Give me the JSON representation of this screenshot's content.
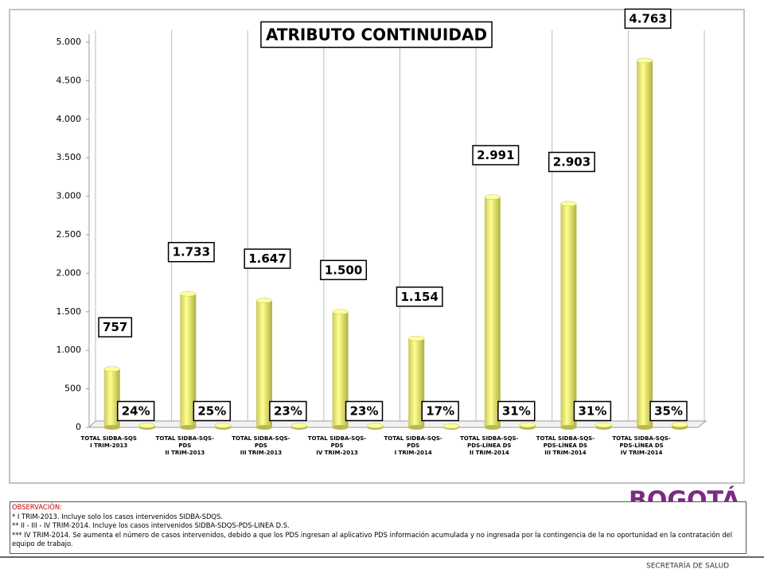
{
  "chart_data": {
    "type": "bar3d",
    "title": "ATRIBUTO CONTINUIDAD",
    "categories": [
      [
        "TOTAL SIDBA-SQS",
        "I TRIM-2013"
      ],
      [
        "TOTAL SIDBA-SQS-",
        "PDS",
        "II TRIM-2013"
      ],
      [
        "TOTAL SIDBA-SQS-",
        "PDS",
        "III TRIM-2013"
      ],
      [
        "TOTAL SIDBA-SQS-",
        "PDS",
        "IV TRIM-2013"
      ],
      [
        "TOTAL SIDBA-SQS-",
        "PDS",
        "I TRIM-2014"
      ],
      [
        "TOTAL SIDBA-SQS-",
        "PDS-LÍNEA DS",
        "II TRIM-2014"
      ],
      [
        "TOTAL SIDBA-SQS-",
        "PDS-LÍNEA DS",
        "III TRIM-2014"
      ],
      [
        "TOTAL SIDBA-SQS-",
        "PDS-LÍNEA DS",
        "IV TRIM-2014"
      ]
    ],
    "series": [
      {
        "color": "#ffff80",
        "values": [
          757,
          1733,
          1647,
          1500,
          1154,
          2991,
          2903,
          4763
        ],
        "value_labels": [
          "757",
          "1.733",
          "1.647",
          "1.500",
          "1.154",
          "2.991",
          "2.903",
          "4.763"
        ]
      },
      {
        "color": "#ffff80",
        "values": [
          24,
          25,
          23,
          23,
          17,
          31,
          31,
          35
        ],
        "value_labels": [
          "24%",
          "25%",
          "23%",
          "23%",
          "17%",
          "31%",
          "31%",
          "35%"
        ]
      }
    ],
    "ylim": [
      0,
      5000
    ],
    "yticks": [
      0,
      {
        "value": 500,
        "label": "500"
      },
      {
        "value": 1000,
        "label": "1.000"
      },
      {
        "value": 1500,
        "label": "1.500"
      },
      {
        "value": 2000,
        "label": "2.000"
      },
      {
        "value": 2500,
        "label": "2.500"
      },
      {
        "value": 3000,
        "label": "3.000"
      },
      {
        "value": 3500,
        "label": "3.500"
      },
      {
        "value": 4000,
        "label": "4.000"
      },
      {
        "value": 4500,
        "label": "4.500"
      },
      {
        "value": 5000,
        "label": "5.000"
      }
    ]
  },
  "notes": {
    "heading": "OBSERVACIÓN:",
    "lines": [
      "* I TRIM-2013. Incluye solo los casos intervenidos SIDBA-SDQS.",
      "** II - III - IV TRIM-2014. Incluye los casos intervenidos SIDBA-SDQS-PDS-LINEA D.S.",
      "*** IV TRIM-2014. Se aumenta el número de casos intervenidos, debido a que los PDS ingresan al aplicativo PDS información acumulada y no ingresada por la contingencia de la no oportunidad en la contratación del equipo de trabajo."
    ]
  },
  "footer": {
    "logo": "BOGOTÁ",
    "org": "SECRETARÍA DE SALUD"
  }
}
